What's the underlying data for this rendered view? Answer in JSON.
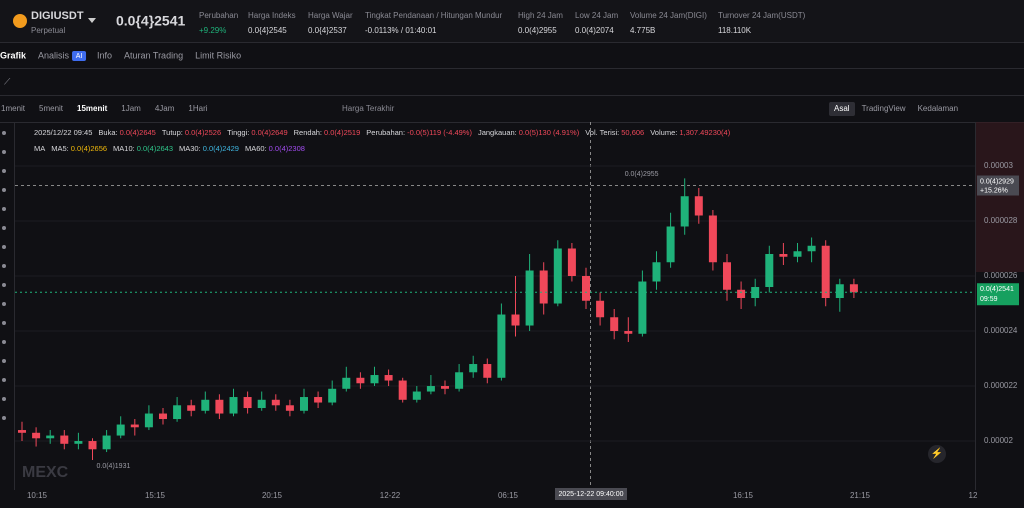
{
  "header": {
    "symbol": "DIGIUSDT",
    "contract": "Perpetual",
    "price": "0.0{4}2541",
    "stats": [
      {
        "label": "Perubahan",
        "value": "+9.29%"
      },
      {
        "label": "Harga Indeks",
        "value": "0.0{4}2545"
      },
      {
        "label": "Harga Wajar",
        "value": "0.0{4}2537"
      },
      {
        "label": "Tingkat Pendanaan / Hitungan Mundur",
        "value": "-0.0113% / 01:40:01"
      },
      {
        "label": "High 24 Jam",
        "value": "0.0(4)2955"
      },
      {
        "label": "Low 24 Jam",
        "value": "0.0(4)2074"
      },
      {
        "label": "Volume 24 Jam(DIGI)",
        "value": "4.775B"
      },
      {
        "label": "Turnover 24 Jam(USDT)",
        "value": "118.110K"
      }
    ]
  },
  "tabs": [
    "Grafik",
    "Analisis",
    "Info",
    "Aturan Trading",
    "Limit Risiko"
  ],
  "analysis_badge": "AI",
  "intervals": [
    "1menit",
    "5menit",
    "15menit",
    "1Jam",
    "4Jam",
    "1Hari"
  ],
  "price_type": "Harga Terakhir",
  "views": [
    "Asal",
    "TradingView",
    "Kedalaman"
  ],
  "ohlc_line": {
    "time": "2025/12/22 09:45",
    "fields": [
      {
        "label": "Buka:",
        "value": "0.0(4)2645"
      },
      {
        "label": "Tutup:",
        "value": "0.0(4)2526"
      },
      {
        "label": "Tinggi:",
        "value": "0.0(4)2649"
      },
      {
        "label": "Rendah:",
        "value": "0.0(4)2519"
      },
      {
        "label": "Perubahan:",
        "value": "-0.0(5)119 (-4.49%)"
      },
      {
        "label": "Jangkauan:",
        "value": "0.0(5)130 (4.91%)"
      },
      {
        "label": "Vol. Terisi:",
        "value": "50,606"
      },
      {
        "label": "Volume:",
        "value": "1,307.49230(4)"
      }
    ]
  },
  "ma_line": {
    "label": "MA",
    "fields": [
      {
        "label": "MA5:",
        "value": "0.0(4)2656",
        "color": "#f0b90b"
      },
      {
        "label": "MA10:",
        "value": "0.0(4)2643",
        "color": "#2fc58a"
      },
      {
        "label": "MA30:",
        "value": "0.0(4)2429",
        "color": "#3fb6e0"
      },
      {
        "label": "MA60:",
        "value": "0.0(4)2308",
        "color": "#a24cf0"
      }
    ]
  },
  "chart": {
    "type": "candlestick",
    "ylim": [
      1.822e-05,
      3.149e-05
    ],
    "yticks": [
      2e-05,
      2.2e-05,
      2.4e-05,
      2.6e-05,
      2.8e-05,
      3e-05
    ],
    "time_labels": [
      "10:15",
      "15:15",
      "20:15",
      "12-22",
      "06:15",
      "16:15",
      "21:15",
      "12"
    ],
    "up_color": "#1fb27a",
    "down_color": "#f0485a",
    "candles": [
      [
        2.04e-05,
        2.07e-05,
        2e-05,
        2.03e-05
      ],
      [
        2.03e-05,
        2.05e-05,
        1.98e-05,
        2.01e-05
      ],
      [
        2.01e-05,
        2.04e-05,
        1.99e-05,
        2.02e-05
      ],
      [
        2.02e-05,
        2.04e-05,
        1.97e-05,
        1.99e-05
      ],
      [
        1.99e-05,
        2.03e-05,
        1.97e-05,
        2e-05
      ],
      [
        2e-05,
        2.01e-05,
        1.931e-05,
        1.97e-05
      ],
      [
        1.97e-05,
        2.04e-05,
        1.96e-05,
        2.02e-05
      ],
      [
        2.02e-05,
        2.09e-05,
        2.01e-05,
        2.06e-05
      ],
      [
        2.06e-05,
        2.08e-05,
        2.02e-05,
        2.05e-05
      ],
      [
        2.05e-05,
        2.13e-05,
        2.04e-05,
        2.1e-05
      ],
      [
        2.1e-05,
        2.12e-05,
        2.06e-05,
        2.08e-05
      ],
      [
        2.08e-05,
        2.16e-05,
        2.07e-05,
        2.13e-05
      ],
      [
        2.13e-05,
        2.15e-05,
        2.09e-05,
        2.11e-05
      ],
      [
        2.11e-05,
        2.18e-05,
        2.1e-05,
        2.15e-05
      ],
      [
        2.15e-05,
        2.17e-05,
        2.08e-05,
        2.1e-05
      ],
      [
        2.1e-05,
        2.19e-05,
        2.09e-05,
        2.16e-05
      ],
      [
        2.16e-05,
        2.18e-05,
        2.1e-05,
        2.12e-05
      ],
      [
        2.12e-05,
        2.18e-05,
        2.11e-05,
        2.15e-05
      ],
      [
        2.15e-05,
        2.17e-05,
        2.11e-05,
        2.13e-05
      ],
      [
        2.13e-05,
        2.15e-05,
        2.09e-05,
        2.11e-05
      ],
      [
        2.11e-05,
        2.19e-05,
        2.1e-05,
        2.16e-05
      ],
      [
        2.16e-05,
        2.18e-05,
        2.12e-05,
        2.14e-05
      ],
      [
        2.14e-05,
        2.22e-05,
        2.13e-05,
        2.19e-05
      ],
      [
        2.19e-05,
        2.27e-05,
        2.18e-05,
        2.23e-05
      ],
      [
        2.23e-05,
        2.25e-05,
        2.19e-05,
        2.21e-05
      ],
      [
        2.21e-05,
        2.27e-05,
        2.2e-05,
        2.24e-05
      ],
      [
        2.24e-05,
        2.26e-05,
        2.2e-05,
        2.22e-05
      ],
      [
        2.22e-05,
        2.23e-05,
        2.14e-05,
        2.15e-05
      ],
      [
        2.15e-05,
        2.2e-05,
        2.14e-05,
        2.18e-05
      ],
      [
        2.18e-05,
        2.24e-05,
        2.17e-05,
        2.2e-05
      ],
      [
        2.2e-05,
        2.22e-05,
        2.17e-05,
        2.19e-05
      ],
      [
        2.19e-05,
        2.28e-05,
        2.18e-05,
        2.25e-05
      ],
      [
        2.25e-05,
        2.31e-05,
        2.23e-05,
        2.28e-05
      ],
      [
        2.28e-05,
        2.3e-05,
        2.21e-05,
        2.23e-05
      ],
      [
        2.23e-05,
        2.5e-05,
        2.22e-05,
        2.46e-05
      ],
      [
        2.46e-05,
        2.6e-05,
        2.38e-05,
        2.42e-05
      ],
      [
        2.42e-05,
        2.68e-05,
        2.4e-05,
        2.62e-05
      ],
      [
        2.62e-05,
        2.65e-05,
        2.46e-05,
        2.5e-05
      ],
      [
        2.5e-05,
        2.73e-05,
        2.49e-05,
        2.7e-05
      ],
      [
        2.7e-05,
        2.72e-05,
        2.58e-05,
        2.6e-05
      ],
      [
        2.6e-05,
        2.63e-05,
        2.48e-05,
        2.51e-05
      ],
      [
        2.51e-05,
        2.54e-05,
        2.42e-05,
        2.45e-05
      ],
      [
        2.45e-05,
        2.48e-05,
        2.37e-05,
        2.4e-05
      ],
      [
        2.4e-05,
        2.45e-05,
        2.36e-05,
        2.39e-05
      ],
      [
        2.39e-05,
        2.62e-05,
        2.38e-05,
        2.58e-05
      ],
      [
        2.58e-05,
        2.69e-05,
        2.55e-05,
        2.65e-05
      ],
      [
        2.65e-05,
        2.83e-05,
        2.63e-05,
        2.78e-05
      ],
      [
        2.78e-05,
        2.955e-05,
        2.75e-05,
        2.89e-05
      ],
      [
        2.89e-05,
        2.92e-05,
        2.79e-05,
        2.82e-05
      ],
      [
        2.82e-05,
        2.84e-05,
        2.62e-05,
        2.65e-05
      ],
      [
        2.65e-05,
        2.68e-05,
        2.51e-05,
        2.55e-05
      ],
      [
        2.55e-05,
        2.58e-05,
        2.48e-05,
        2.52e-05
      ],
      [
        2.52e-05,
        2.59e-05,
        2.49e-05,
        2.56e-05
      ],
      [
        2.56e-05,
        2.71e-05,
        2.54e-05,
        2.68e-05
      ],
      [
        2.68e-05,
        2.72e-05,
        2.64e-05,
        2.67e-05
      ],
      [
        2.67e-05,
        2.72e-05,
        2.65e-05,
        2.69e-05
      ],
      [
        2.69e-05,
        2.74e-05,
        2.65e-05,
        2.71e-05
      ],
      [
        2.71e-05,
        2.73e-05,
        2.49e-05,
        2.52e-05
      ],
      [
        2.52e-05,
        2.59e-05,
        2.47e-05,
        2.57e-05
      ],
      [
        2.57e-05,
        2.59e-05,
        2.52e-05,
        2.541e-05
      ]
    ],
    "high_marker": "0.0(4)2955",
    "low_marker": "0.0(4)1931",
    "crosshair": {
      "value": 2.929e-05,
      "label": "0.0(4)2929",
      "change": "+15.26%",
      "time": "2025-12-22 09:40:00"
    },
    "last_price": {
      "value": 2.541e-05,
      "label": "0.0(4)2541",
      "countdown": "09:59"
    },
    "watermark": "MEXC"
  }
}
